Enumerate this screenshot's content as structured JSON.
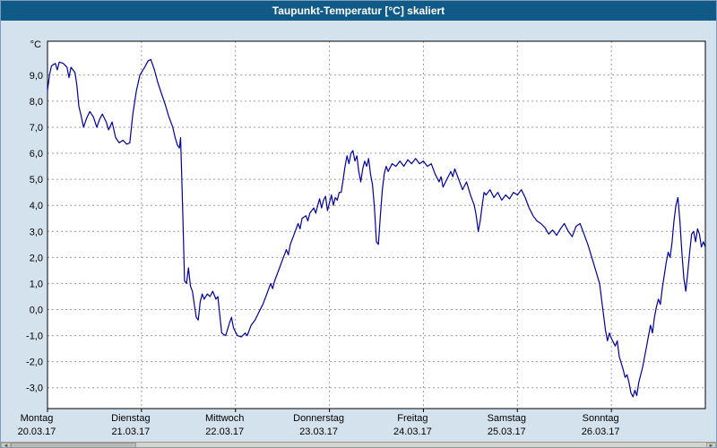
{
  "window": {
    "title": "Taupunkt-Temperatur [°C] skaliert"
  },
  "colors": {
    "titlebar_bg": "#0f5a87",
    "titlebar_text": "#ffffff",
    "window_bg": "#d4e2ee",
    "plot_bg": "#ffffff",
    "line": "#0000a0",
    "grid": "#9b9b9b",
    "axis_text": "#000000",
    "plot_border": "#000000"
  },
  "icons": {
    "scroll_left_icon": "◄",
    "scroll_right_icon": "►"
  },
  "chart_data": {
    "type": "line",
    "title": "Taupunkt-Temperatur [°C] skaliert",
    "y_unit_label": "°C",
    "ylim": [
      -3.8,
      10.3
    ],
    "x_hours_total": 168,
    "grid": "dashed",
    "legend": "none",
    "y_ticks": [
      9,
      8,
      7,
      6,
      5,
      4,
      3,
      2,
      1,
      0,
      -1,
      -2,
      -3
    ],
    "y_tick_labels": [
      "9,0",
      "8,0",
      "7,0",
      "6,0",
      "5,0",
      "4,0",
      "3,0",
      "2,0",
      "1,0",
      "0,0",
      "-1,0",
      "-2,0",
      "-3,0"
    ],
    "x_day_ticks": [
      {
        "name": "Montag",
        "date": "20.03.17",
        "hour": 0
      },
      {
        "name": "Dienstag",
        "date": "21.03.17",
        "hour": 24
      },
      {
        "name": "Mittwoch",
        "date": "22.03.17",
        "hour": 48
      },
      {
        "name": "Donnerstag",
        "date": "23.03.17",
        "hour": 72
      },
      {
        "name": "Freitag",
        "date": "24.03.17",
        "hour": 96
      },
      {
        "name": "Samstag",
        "date": "25.03.17",
        "hour": 120
      },
      {
        "name": "Sonntag",
        "date": "26.03.17",
        "hour": 144
      }
    ],
    "series": [
      {
        "name": "Taupunkt-Temperatur",
        "color": "#0000a0",
        "points": [
          [
            0,
            8.4
          ],
          [
            0.5,
            9.0
          ],
          [
            1,
            9.35
          ],
          [
            2,
            9.45
          ],
          [
            2.5,
            9.2
          ],
          [
            3,
            9.5
          ],
          [
            4,
            9.45
          ],
          [
            5,
            9.3
          ],
          [
            5.5,
            8.9
          ],
          [
            6,
            9.3
          ],
          [
            7,
            9.1
          ],
          [
            7.5,
            8.6
          ],
          [
            8,
            7.8
          ],
          [
            8.5,
            7.5
          ],
          [
            9.2,
            7.0
          ],
          [
            10,
            7.35
          ],
          [
            10.8,
            7.6
          ],
          [
            11.7,
            7.4
          ],
          [
            12.6,
            7.0
          ],
          [
            13.3,
            7.3
          ],
          [
            14,
            7.5
          ],
          [
            15,
            7.2
          ],
          [
            15.6,
            6.9
          ],
          [
            16.5,
            7.2
          ],
          [
            17.4,
            6.6
          ],
          [
            18.3,
            6.4
          ],
          [
            19.3,
            6.5
          ],
          [
            20.2,
            6.35
          ],
          [
            21,
            6.4
          ],
          [
            21.8,
            7.5
          ],
          [
            22.7,
            8.4
          ],
          [
            23.6,
            9.0
          ],
          [
            24.8,
            9.3
          ],
          [
            25.7,
            9.55
          ],
          [
            26.4,
            9.6
          ],
          [
            27.3,
            9.2
          ],
          [
            28.2,
            8.7
          ],
          [
            29.1,
            8.3
          ],
          [
            30,
            7.9
          ],
          [
            31,
            7.4
          ],
          [
            32,
            7.0
          ],
          [
            32.6,
            6.6
          ],
          [
            33.2,
            6.3
          ],
          [
            33.7,
            6.2
          ],
          [
            34,
            6.6
          ],
          [
            34.5,
            4.0
          ],
          [
            35,
            1.1
          ],
          [
            35.5,
            1.0
          ],
          [
            36,
            1.6
          ],
          [
            36.5,
            0.9
          ],
          [
            37,
            0.7
          ],
          [
            37.5,
            0.2
          ],
          [
            38,
            -0.3
          ],
          [
            38.5,
            -0.4
          ],
          [
            39,
            0.3
          ],
          [
            39.5,
            0.6
          ],
          [
            40,
            0.4
          ],
          [
            40.8,
            0.6
          ],
          [
            41.5,
            0.5
          ],
          [
            42.2,
            0.7
          ],
          [
            43,
            0.4
          ],
          [
            43.5,
            0.5
          ],
          [
            44,
            -0.2
          ],
          [
            44.5,
            -0.9
          ],
          [
            45.5,
            -1.0
          ],
          [
            46.5,
            -0.5
          ],
          [
            47,
            -0.3
          ],
          [
            47.5,
            -0.7
          ],
          [
            48.5,
            -1.0
          ],
          [
            49.5,
            -1.05
          ],
          [
            50.5,
            -0.9
          ],
          [
            51,
            -1.0
          ],
          [
            52,
            -0.6
          ],
          [
            53,
            -0.4
          ],
          [
            54,
            -0.1
          ],
          [
            55,
            0.2
          ],
          [
            56,
            0.6
          ],
          [
            57,
            1.0
          ],
          [
            57.5,
            0.8
          ],
          [
            58,
            1.1
          ],
          [
            59,
            1.5
          ],
          [
            60,
            1.9
          ],
          [
            61,
            2.3
          ],
          [
            61.5,
            2.1
          ],
          [
            62,
            2.5
          ],
          [
            63,
            2.9
          ],
          [
            64,
            3.3
          ],
          [
            64.5,
            3.1
          ],
          [
            65,
            3.5
          ],
          [
            66,
            3.6
          ],
          [
            66.5,
            3.4
          ],
          [
            67,
            3.7
          ],
          [
            68,
            3.9
          ],
          [
            68.5,
            3.7
          ],
          [
            69,
            4.0
          ],
          [
            69.5,
            4.25
          ],
          [
            70,
            3.9
          ],
          [
            70.5,
            4.2
          ],
          [
            71,
            4.35
          ],
          [
            71.5,
            3.8
          ],
          [
            72,
            4.1
          ],
          [
            72.5,
            4.4
          ],
          [
            73,
            4.0
          ],
          [
            73.5,
            4.3
          ],
          [
            74,
            4.2
          ],
          [
            74.5,
            4.5
          ],
          [
            75,
            4.5
          ],
          [
            75.5,
            5.0
          ],
          [
            76,
            5.5
          ],
          [
            76.5,
            5.9
          ],
          [
            77,
            5.6
          ],
          [
            77.5,
            6.0
          ],
          [
            78,
            6.1
          ],
          [
            78.5,
            5.7
          ],
          [
            79,
            5.9
          ],
          [
            79.5,
            5.3
          ],
          [
            80,
            4.9
          ],
          [
            80.5,
            5.4
          ],
          [
            81,
            5.7
          ],
          [
            81.5,
            5.5
          ],
          [
            82,
            5.8
          ],
          [
            82.5,
            5.2
          ],
          [
            83,
            4.8
          ],
          [
            83.5,
            3.9
          ],
          [
            84,
            2.6
          ],
          [
            84.5,
            2.5
          ],
          [
            85,
            3.6
          ],
          [
            85.5,
            4.6
          ],
          [
            86,
            5.2
          ],
          [
            86.5,
            5.5
          ],
          [
            87,
            5.3
          ],
          [
            88,
            5.6
          ],
          [
            89,
            5.5
          ],
          [
            90,
            5.7
          ],
          [
            91,
            5.5
          ],
          [
            92,
            5.75
          ],
          [
            93,
            5.6
          ],
          [
            94,
            5.8
          ],
          [
            95,
            5.6
          ],
          [
            96,
            5.7
          ],
          [
            97,
            5.5
          ],
          [
            98,
            5.6
          ],
          [
            99,
            5.2
          ],
          [
            100,
            4.9
          ],
          [
            100.5,
            5.1
          ],
          [
            101,
            4.7
          ],
          [
            102,
            5.0
          ],
          [
            103,
            5.3
          ],
          [
            103.5,
            5.1
          ],
          [
            104,
            5.4
          ],
          [
            105,
            5.0
          ],
          [
            106,
            4.6
          ],
          [
            107,
            4.9
          ],
          [
            108,
            4.4
          ],
          [
            109,
            4.0
          ],
          [
            109.5,
            3.6
          ],
          [
            110,
            3.0
          ],
          [
            110.5,
            3.4
          ],
          [
            111,
            4.0
          ],
          [
            111.5,
            4.5
          ],
          [
            112,
            4.4
          ],
          [
            113,
            4.6
          ],
          [
            114,
            4.3
          ],
          [
            115,
            4.5
          ],
          [
            116,
            4.2
          ],
          [
            117,
            4.4
          ],
          [
            118,
            4.25
          ],
          [
            119,
            4.5
          ],
          [
            120,
            4.4
          ],
          [
            121,
            4.6
          ],
          [
            122,
            4.3
          ],
          [
            123,
            3.9
          ],
          [
            124,
            3.6
          ],
          [
            125,
            3.4
          ],
          [
            126,
            3.3
          ],
          [
            127,
            3.15
          ],
          [
            128,
            2.9
          ],
          [
            129,
            3.05
          ],
          [
            130,
            2.85
          ],
          [
            131,
            3.1
          ],
          [
            132,
            3.3
          ],
          [
            133,
            3.0
          ],
          [
            134,
            2.8
          ],
          [
            135,
            3.2
          ],
          [
            136,
            3.3
          ],
          [
            137,
            2.9
          ],
          [
            138,
            2.5
          ],
          [
            139,
            2.0
          ],
          [
            140,
            1.5
          ],
          [
            141,
            1.0
          ],
          [
            141.5,
            0.4
          ],
          [
            142,
            -0.2
          ],
          [
            142.5,
            -0.8
          ],
          [
            143,
            -1.2
          ],
          [
            143.5,
            -0.9
          ],
          [
            144,
            -1.1
          ],
          [
            145,
            -1.4
          ],
          [
            145.5,
            -1.2
          ],
          [
            146,
            -1.8
          ],
          [
            147,
            -2.3
          ],
          [
            147.5,
            -2.6
          ],
          [
            148,
            -2.5
          ],
          [
            148.5,
            -2.8
          ],
          [
            149,
            -3.2
          ],
          [
            149.5,
            -3.35
          ],
          [
            150,
            -3.1
          ],
          [
            150.5,
            -3.3
          ],
          [
            151,
            -2.8
          ],
          [
            152,
            -2.2
          ],
          [
            152.5,
            -1.8
          ],
          [
            153,
            -1.4
          ],
          [
            153.5,
            -1.0
          ],
          [
            154,
            -0.6
          ],
          [
            154.5,
            -0.9
          ],
          [
            155,
            -0.3
          ],
          [
            155.5,
            0.1
          ],
          [
            156,
            0.4
          ],
          [
            156.5,
            0.2
          ],
          [
            157,
            0.8
          ],
          [
            157.5,
            1.3
          ],
          [
            158,
            1.8
          ],
          [
            158.5,
            2.2
          ],
          [
            159,
            2.0
          ],
          [
            159.5,
            2.6
          ],
          [
            160,
            3.4
          ],
          [
            160.5,
            4.0
          ],
          [
            161,
            4.3
          ],
          [
            161.5,
            3.4
          ],
          [
            162,
            2.2
          ],
          [
            162.5,
            1.2
          ],
          [
            163,
            0.7
          ],
          [
            163.5,
            1.4
          ],
          [
            164,
            2.2
          ],
          [
            164.5,
            2.9
          ],
          [
            165,
            3.0
          ],
          [
            165.5,
            2.6
          ],
          [
            166,
            3.1
          ],
          [
            166.5,
            2.9
          ],
          [
            167,
            2.4
          ],
          [
            167.5,
            2.6
          ],
          [
            168,
            2.4
          ]
        ]
      }
    ]
  }
}
